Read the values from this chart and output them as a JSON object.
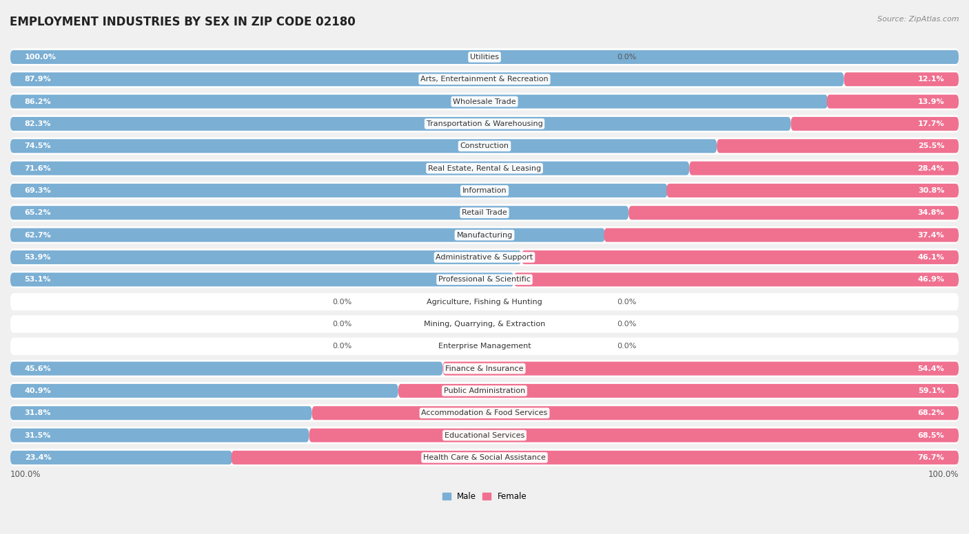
{
  "title": "EMPLOYMENT INDUSTRIES BY SEX IN ZIP CODE 02180",
  "source": "Source: ZipAtlas.com",
  "categories": [
    "Utilities",
    "Arts, Entertainment & Recreation",
    "Wholesale Trade",
    "Transportation & Warehousing",
    "Construction",
    "Real Estate, Rental & Leasing",
    "Information",
    "Retail Trade",
    "Manufacturing",
    "Administrative & Support",
    "Professional & Scientific",
    "Agriculture, Fishing & Hunting",
    "Mining, Quarrying, & Extraction",
    "Enterprise Management",
    "Finance & Insurance",
    "Public Administration",
    "Accommodation & Food Services",
    "Educational Services",
    "Health Care & Social Assistance"
  ],
  "male_pct": [
    100.0,
    87.9,
    86.2,
    82.3,
    74.5,
    71.6,
    69.3,
    65.2,
    62.7,
    53.9,
    53.1,
    0.0,
    0.0,
    0.0,
    45.6,
    40.9,
    31.8,
    31.5,
    23.4
  ],
  "female_pct": [
    0.0,
    12.1,
    13.9,
    17.7,
    25.5,
    28.4,
    30.8,
    34.8,
    37.4,
    46.1,
    46.9,
    0.0,
    0.0,
    0.0,
    54.4,
    59.1,
    68.2,
    68.5,
    76.7
  ],
  "male_color": "#7bafd4",
  "female_color": "#f07090",
  "bar_height": 0.62,
  "background_color": "#f0f0f0",
  "row_bg_color": "#ffffff",
  "title_fontsize": 12,
  "label_fontsize": 8.0,
  "tick_fontsize": 8.5,
  "pct_fontsize": 8.0
}
